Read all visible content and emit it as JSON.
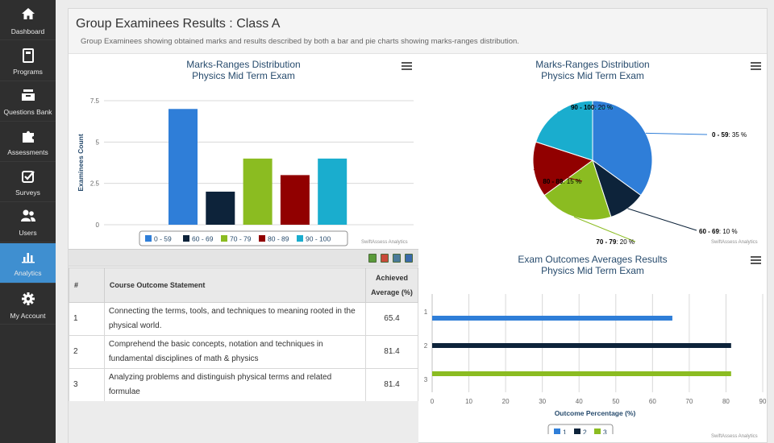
{
  "sidebar": {
    "items": [
      {
        "label": "Dashboard",
        "icon": "home-icon"
      },
      {
        "label": "Programs",
        "icon": "book-icon"
      },
      {
        "label": "Questions Bank",
        "icon": "inbox-icon"
      },
      {
        "label": "Assessments",
        "icon": "puzzle-icon"
      },
      {
        "label": "Surveys",
        "icon": "checkbox-icon"
      },
      {
        "label": "Users",
        "icon": "users-icon"
      },
      {
        "label": "Analytics",
        "icon": "bar-chart-icon",
        "active": true
      },
      {
        "label": "My Account",
        "icon": "gear-icon"
      }
    ]
  },
  "header": {
    "title": "Group Examinees Results : Class A",
    "description": "Group Examinees showing obtained marks and results described by both a bar and pie charts showing marks-ranges distribution."
  },
  "credit": "SwiftAssess Analytics",
  "table": {
    "headers": {
      "num": "#",
      "statement": "Course Outcome Statement",
      "achieved_line1": "Achieved",
      "achieved_line2": "Average (%)"
    },
    "rows": [
      {
        "num": "1",
        "statement": "Connecting the  terms, tools, and techniques to meaning rooted in the physical world.",
        "avg": "65.4"
      },
      {
        "num": "2",
        "statement": "Comprehend the basic concepts, notation and techniques in fundamental disciplines of math & physics",
        "avg": "81.4"
      },
      {
        "num": "3",
        "statement": "Analyzing problems and distinguish physical terms and related formulae",
        "avg": "81.4"
      }
    ]
  },
  "colors": {
    "blue": "#2f7ed8",
    "navy": "#0d233a",
    "green": "#8bbc21",
    "red": "#910000",
    "cyan": "#1aadce",
    "accent": "#3f8fd0"
  },
  "chart_data": [
    {
      "type": "bar",
      "title": "Marks-Ranges Distribution",
      "subtitle": "Physics Mid Term Exam",
      "ylabel": "Examinees Count",
      "categories": [
        "0 - 59",
        "60 - 69",
        "70 - 79",
        "80 - 89",
        "90 - 100"
      ],
      "series": [
        {
          "name": "0 - 59",
          "value": 7
        },
        {
          "name": "60 - 69",
          "value": 2
        },
        {
          "name": "70 - 79",
          "value": 4
        },
        {
          "name": "80 - 89",
          "value": 3
        },
        {
          "name": "90 - 100",
          "value": 4
        }
      ],
      "ylim": [
        0,
        7.5
      ],
      "yticks": [
        "0",
        "2.5",
        "5",
        "7.5"
      ],
      "legend": "bottom-center",
      "grid": true
    },
    {
      "type": "pie",
      "title": "Marks-Ranges Distribution",
      "subtitle": "Physics Mid Term Exam",
      "slices": [
        {
          "name": "0 - 59",
          "value": 35,
          "label": "35 %"
        },
        {
          "name": "60 - 69",
          "value": 10,
          "label": "10 %"
        },
        {
          "name": "70 - 79",
          "value": 20,
          "label": "20 %"
        },
        {
          "name": "80 - 89",
          "value": 15,
          "label": "15 %"
        },
        {
          "name": "90 - 100",
          "value": 20,
          "label": "20 %"
        }
      ]
    },
    {
      "type": "bar",
      "orientation": "horizontal",
      "title": "Exam Outcomes Averages Results",
      "subtitle": "Physics Mid Term Exam",
      "xlabel": "Outcome Percentage (%)",
      "categories": [
        "1",
        "2",
        "3"
      ],
      "series": [
        {
          "name": "1",
          "value": 65.4
        },
        {
          "name": "2",
          "value": 81.4
        },
        {
          "name": "3",
          "value": 81.4
        }
      ],
      "xlim": [
        0,
        90
      ],
      "xticks": [
        "0",
        "10",
        "20",
        "30",
        "40",
        "50",
        "60",
        "70",
        "80",
        "90"
      ],
      "legend": "bottom-center",
      "grid": true
    }
  ]
}
